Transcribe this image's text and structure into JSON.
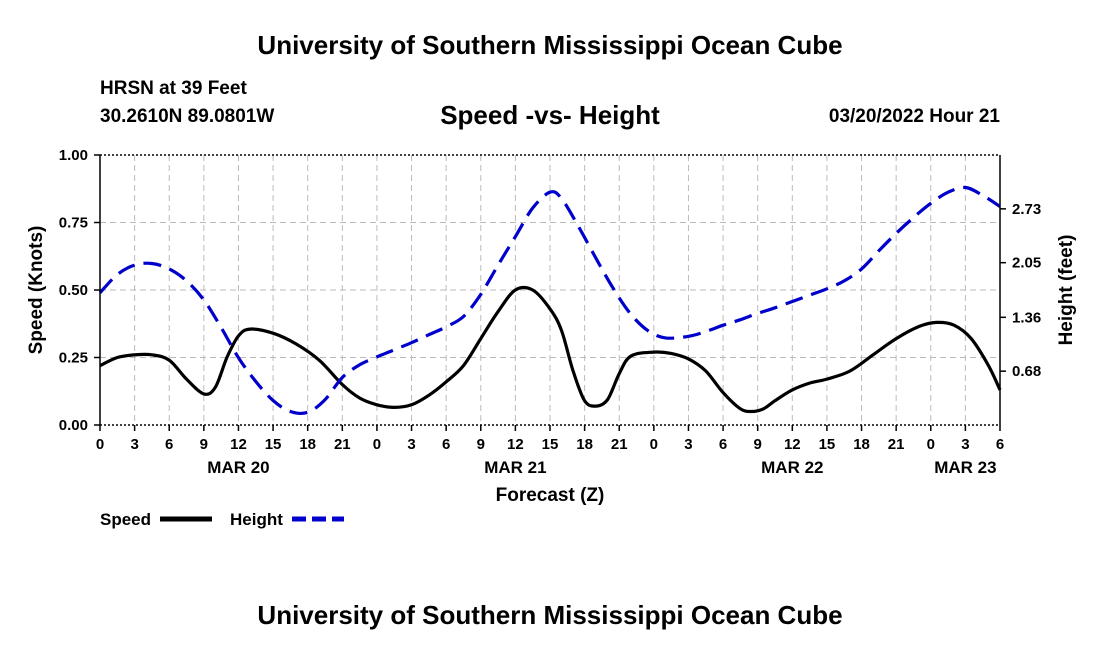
{
  "header": {
    "title": "University of Southern Mississippi Ocean Cube",
    "station": "HRSN at 39 Feet",
    "coords": "30.2610N  89.0801W",
    "subtitle": "Speed -vs- Height",
    "date": "03/20/2022 Hour 21"
  },
  "footer": {
    "title": "University of Southern Mississippi Ocean Cube"
  },
  "chart_data": {
    "type": "line",
    "title": "Speed -vs- Height",
    "xlabel": "Forecast (Z)",
    "ylabel_left": "Speed (Knots)",
    "ylabel_right": "Height (feet)",
    "x_range_hours": [
      0,
      78
    ],
    "x_ticks": [
      {
        "h": 0,
        "label": "0"
      },
      {
        "h": 3,
        "label": "3"
      },
      {
        "h": 6,
        "label": "6"
      },
      {
        "h": 9,
        "label": "9"
      },
      {
        "h": 12,
        "label": "12"
      },
      {
        "h": 15,
        "label": "15"
      },
      {
        "h": 18,
        "label": "18"
      },
      {
        "h": 21,
        "label": "21"
      },
      {
        "h": 24,
        "label": "0"
      },
      {
        "h": 27,
        "label": "3"
      },
      {
        "h": 30,
        "label": "6"
      },
      {
        "h": 33,
        "label": "9"
      },
      {
        "h": 36,
        "label": "12"
      },
      {
        "h": 39,
        "label": "15"
      },
      {
        "h": 42,
        "label": "18"
      },
      {
        "h": 45,
        "label": "21"
      },
      {
        "h": 48,
        "label": "0"
      },
      {
        "h": 51,
        "label": "3"
      },
      {
        "h": 54,
        "label": "6"
      },
      {
        "h": 57,
        "label": "9"
      },
      {
        "h": 60,
        "label": "12"
      },
      {
        "h": 63,
        "label": "15"
      },
      {
        "h": 66,
        "label": "18"
      },
      {
        "h": 69,
        "label": "21"
      },
      {
        "h": 72,
        "label": "0"
      },
      {
        "h": 75,
        "label": "3"
      },
      {
        "h": 78,
        "label": "6"
      }
    ],
    "day_labels": [
      {
        "h": 12,
        "label": "MAR 20"
      },
      {
        "h": 36,
        "label": "MAR 21"
      },
      {
        "h": 60,
        "label": "MAR 22"
      },
      {
        "h": 75,
        "label": "MAR 23"
      }
    ],
    "y_left": {
      "range": [
        0,
        1.0
      ],
      "ticks": [
        "0.00",
        "0.25",
        "0.50",
        "0.75",
        "1.00"
      ]
    },
    "y_right": {
      "range": [
        0,
        3.41
      ],
      "ticks": [
        "0.68",
        "1.36",
        "2.05",
        "2.73"
      ]
    },
    "grid": true,
    "legend": {
      "position": "bottom-left",
      "items": [
        "Speed",
        "Height"
      ]
    },
    "series": [
      {
        "name": "Speed",
        "axis": "left",
        "color": "#000000",
        "style": "solid",
        "points": [
          [
            0,
            0.22
          ],
          [
            1.5,
            0.25
          ],
          [
            3,
            0.26
          ],
          [
            4.5,
            0.26
          ],
          [
            6,
            0.24
          ],
          [
            7.5,
            0.17
          ],
          [
            9,
            0.115
          ],
          [
            10,
            0.14
          ],
          [
            11,
            0.25
          ],
          [
            12,
            0.33
          ],
          [
            13,
            0.355
          ],
          [
            15,
            0.34
          ],
          [
            17,
            0.3
          ],
          [
            19,
            0.24
          ],
          [
            21,
            0.15
          ],
          [
            22.5,
            0.1
          ],
          [
            24,
            0.075
          ],
          [
            25.5,
            0.065
          ],
          [
            27,
            0.075
          ],
          [
            28.5,
            0.11
          ],
          [
            30,
            0.16
          ],
          [
            31.5,
            0.22
          ],
          [
            33,
            0.32
          ],
          [
            34.5,
            0.42
          ],
          [
            36,
            0.5
          ],
          [
            37.5,
            0.5
          ],
          [
            39,
            0.43
          ],
          [
            40,
            0.35
          ],
          [
            41,
            0.2
          ],
          [
            42,
            0.09
          ],
          [
            43,
            0.07
          ],
          [
            44,
            0.095
          ],
          [
            45,
            0.19
          ],
          [
            46,
            0.255
          ],
          [
            48,
            0.27
          ],
          [
            49.5,
            0.265
          ],
          [
            51,
            0.245
          ],
          [
            52.5,
            0.2
          ],
          [
            54,
            0.12
          ],
          [
            55.5,
            0.06
          ],
          [
            56.5,
            0.05
          ],
          [
            57.5,
            0.06
          ],
          [
            58.5,
            0.09
          ],
          [
            60,
            0.13
          ],
          [
            61.5,
            0.155
          ],
          [
            63,
            0.17
          ],
          [
            65,
            0.2
          ],
          [
            67,
            0.26
          ],
          [
            69,
            0.32
          ],
          [
            71,
            0.365
          ],
          [
            72.5,
            0.38
          ],
          [
            74,
            0.37
          ],
          [
            75.5,
            0.32
          ],
          [
            77,
            0.22
          ],
          [
            78,
            0.13
          ]
        ]
      },
      {
        "name": "Height",
        "axis": "right",
        "color": "#0000cc",
        "style": "dashed",
        "points": [
          [
            0,
            1.67
          ],
          [
            1.5,
            1.9
          ],
          [
            3,
            2.02
          ],
          [
            4.5,
            2.04
          ],
          [
            6,
            1.97
          ],
          [
            7.5,
            1.82
          ],
          [
            9,
            1.58
          ],
          [
            10.5,
            1.23
          ],
          [
            12,
            0.85
          ],
          [
            13.5,
            0.55
          ],
          [
            15,
            0.31
          ],
          [
            16.5,
            0.17
          ],
          [
            18,
            0.16
          ],
          [
            19.5,
            0.32
          ],
          [
            21,
            0.6
          ],
          [
            22.5,
            0.76
          ],
          [
            24,
            0.86
          ],
          [
            25.5,
            0.95
          ],
          [
            27,
            1.04
          ],
          [
            28.5,
            1.14
          ],
          [
            30,
            1.24
          ],
          [
            31.5,
            1.37
          ],
          [
            33,
            1.65
          ],
          [
            34.5,
            2.02
          ],
          [
            36,
            2.38
          ],
          [
            37.5,
            2.74
          ],
          [
            39,
            2.94
          ],
          [
            40,
            2.86
          ],
          [
            41.5,
            2.5
          ],
          [
            43,
            2.1
          ],
          [
            44.5,
            1.72
          ],
          [
            46,
            1.4
          ],
          [
            47.5,
            1.19
          ],
          [
            49,
            1.1
          ],
          [
            51,
            1.12
          ],
          [
            52.5,
            1.18
          ],
          [
            54,
            1.26
          ],
          [
            55.5,
            1.33
          ],
          [
            57,
            1.41
          ],
          [
            58.5,
            1.48
          ],
          [
            60,
            1.56
          ],
          [
            61.5,
            1.64
          ],
          [
            63,
            1.72
          ],
          [
            64.5,
            1.82
          ],
          [
            66,
            1.97
          ],
          [
            67.5,
            2.2
          ],
          [
            69,
            2.42
          ],
          [
            70.5,
            2.62
          ],
          [
            72,
            2.8
          ],
          [
            73.5,
            2.94
          ],
          [
            75,
            3.0
          ],
          [
            76.5,
            2.9
          ],
          [
            78,
            2.76
          ]
        ]
      }
    ]
  }
}
